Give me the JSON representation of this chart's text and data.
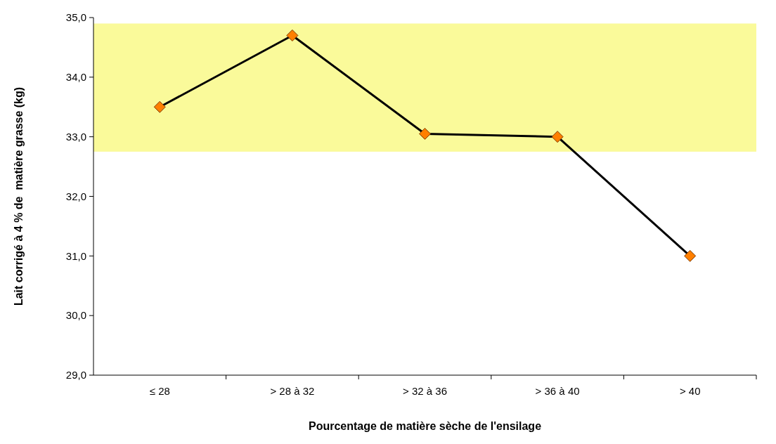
{
  "chart_data": {
    "type": "line",
    "xlabel": "Pourcentage de matière sèche de l'ensilage",
    "ylabel": "Lait corrigé à 4 % de  matière grasse (kg)",
    "categories": [
      "≤ 28",
      "> 28 à 32",
      "> 32 à 36",
      "> 36 à 40",
      "> 40"
    ],
    "series": [
      {
        "color": "#000000",
        "values": [
          33.5,
          34.7,
          33.05,
          33.0,
          31.0
        ]
      }
    ],
    "marker": "diamond",
    "line_style": "solid",
    "ylim": [
      29,
      35
    ],
    "yticks": [
      {
        "value": 29,
        "label": "29,0"
      },
      {
        "value": 30,
        "label": "30,0"
      },
      {
        "value": 31,
        "label": "31,0"
      },
      {
        "value": 32,
        "label": "32,0"
      },
      {
        "value": 33,
        "label": "33,0"
      },
      {
        "value": 34,
        "label": "34,0"
      },
      {
        "value": 35,
        "label": "35,0"
      }
    ],
    "bands": [
      {
        "axis": "y",
        "from": 32.75,
        "to": 34.9,
        "color": "#fafa9a"
      }
    ],
    "grid": false
  }
}
